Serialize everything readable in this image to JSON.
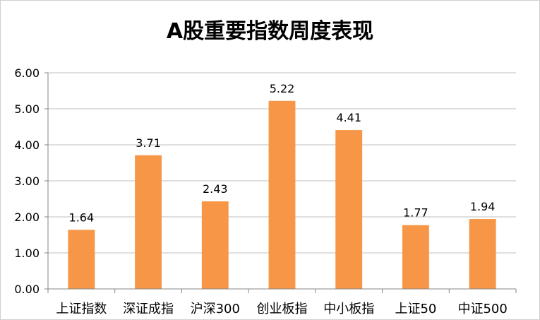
{
  "chart_data": {
    "type": "bar",
    "title": "A股重要指数周度表现",
    "xlabel": "",
    "ylabel": "",
    "ylim": [
      0,
      6
    ],
    "yticks": [
      "0.00",
      "1.00",
      "2.00",
      "3.00",
      "4.00",
      "5.00",
      "6.00"
    ],
    "grid": true,
    "categories": [
      "上证指数",
      "深证成指",
      "沪深300",
      "创业板指",
      "中小板指",
      "上证50",
      "中证500"
    ],
    "values": [
      1.64,
      3.71,
      2.43,
      5.22,
      4.41,
      1.77,
      1.94
    ],
    "value_labels": [
      "1.64",
      "3.71",
      "2.43",
      "5.22",
      "4.41",
      "1.77",
      "1.94"
    ],
    "bar_color": "#F79646",
    "grid_color": "#BFBFBF",
    "axis_color": "#868686"
  }
}
